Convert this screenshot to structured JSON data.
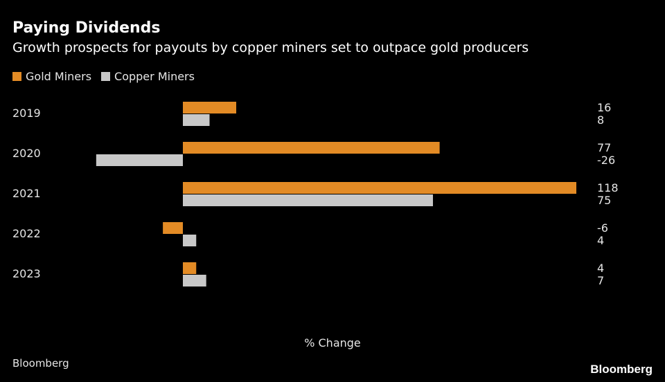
{
  "title": "Paying Dividends",
  "subtitle": "Growth prospects for payouts by copper miners set to outpace gold producers",
  "source": "Bloomberg",
  "logo": "Bloomberg",
  "colors": {
    "gold": "#e38b25",
    "copper": "#c8c8c8"
  },
  "chart_data": {
    "type": "bar",
    "orientation": "horizontal",
    "title": "Paying Dividends",
    "xlabel": "% Change",
    "ylabel": "",
    "categories": [
      "2019",
      "2020",
      "2021",
      "2022",
      "2023"
    ],
    "series": [
      {
        "name": "Gold Miners",
        "values": [
          16,
          77,
          118,
          -6,
          4
        ]
      },
      {
        "name": "Copper Miners",
        "values": [
          8,
          -26,
          75,
          4,
          7
        ]
      }
    ],
    "xlim": [
      -26,
      118
    ],
    "legend": "top-left",
    "grid": false
  }
}
